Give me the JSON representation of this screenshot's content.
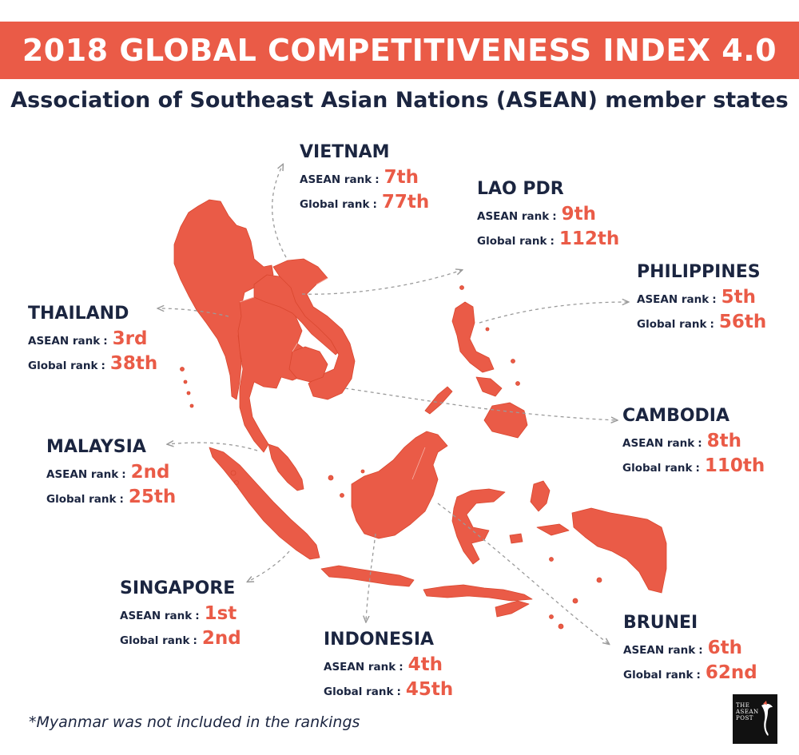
{
  "header": {
    "title": "2018 GLOBAL COMPETITIVENESS INDEX 4.0",
    "subtitle": "Association of Southeast Asian Nations (ASEAN) member states"
  },
  "labels": {
    "asean_rank": "ASEAN rank",
    "global_rank": "Global rank",
    "colon": ":"
  },
  "countries": {
    "vietnam": {
      "name": "VIETNAM",
      "asean_rank": "7th",
      "global_rank": "77th"
    },
    "laos": {
      "name": "LAO PDR",
      "asean_rank": "9th",
      "global_rank": "112th"
    },
    "philippines": {
      "name": "PHILIPPINES",
      "asean_rank": "5th",
      "global_rank": "56th"
    },
    "thailand": {
      "name": "THAILAND",
      "asean_rank": "3rd",
      "global_rank": "38th"
    },
    "cambodia": {
      "name": "CAMBODIA",
      "asean_rank": "8th",
      "global_rank": "110th"
    },
    "malaysia": {
      "name": "MALAYSIA",
      "asean_rank": "2nd",
      "global_rank": "25th"
    },
    "singapore": {
      "name": "SINGAPORE",
      "asean_rank": "1st",
      "global_rank": "2nd"
    },
    "indonesia": {
      "name": "INDONESIA",
      "asean_rank": "4th",
      "global_rank": "45th"
    },
    "brunei": {
      "name": "BRUNEI",
      "asean_rank": "6th",
      "global_rank": "62nd"
    }
  },
  "footnote": "*Myanmar was not included in the rankings",
  "logo": {
    "text": "THE ASEAN POST"
  },
  "colors": {
    "accent": "#ea5b47",
    "text": "#1b2540",
    "connector": "#9a9a9a"
  }
}
